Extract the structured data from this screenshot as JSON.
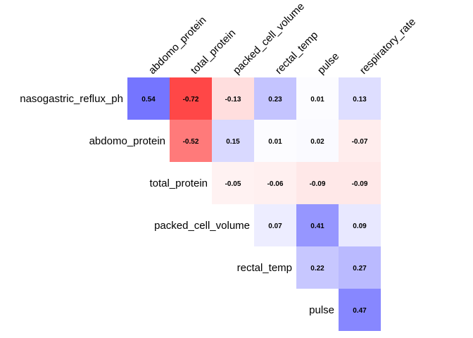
{
  "chart_data": {
    "type": "heatmap",
    "title": "",
    "columns": [
      "abdomo_protein",
      "total_protein",
      "packed_cell_volume",
      "rectal_temp",
      "pulse",
      "respiratory_rate"
    ],
    "rows": [
      "nasogastric_reflux_ph",
      "abdomo_protein",
      "total_protein",
      "packed_cell_volume",
      "rectal_temp",
      "pulse"
    ],
    "cells": [
      {
        "row": 0,
        "col": 0,
        "value": 0.54,
        "label": "0.54"
      },
      {
        "row": 0,
        "col": 1,
        "value": -0.72,
        "label": "-0.72"
      },
      {
        "row": 0,
        "col": 2,
        "value": -0.13,
        "label": "-0.13"
      },
      {
        "row": 0,
        "col": 3,
        "value": 0.23,
        "label": "0.23"
      },
      {
        "row": 0,
        "col": 4,
        "value": 0.01,
        "label": "0.01"
      },
      {
        "row": 0,
        "col": 5,
        "value": 0.13,
        "label": "0.13"
      },
      {
        "row": 1,
        "col": 1,
        "value": -0.52,
        "label": "-0.52"
      },
      {
        "row": 1,
        "col": 2,
        "value": 0.15,
        "label": "0.15"
      },
      {
        "row": 1,
        "col": 3,
        "value": 0.01,
        "label": "0.01"
      },
      {
        "row": 1,
        "col": 4,
        "value": 0.02,
        "label": "0.02"
      },
      {
        "row": 1,
        "col": 5,
        "value": -0.07,
        "label": "-0.07"
      },
      {
        "row": 2,
        "col": 2,
        "value": -0.05,
        "label": "-0.05"
      },
      {
        "row": 2,
        "col": 3,
        "value": -0.06,
        "label": "-0.06"
      },
      {
        "row": 2,
        "col": 4,
        "value": -0.09,
        "label": "-0.09"
      },
      {
        "row": 2,
        "col": 5,
        "value": -0.09,
        "label": "-0.09"
      },
      {
        "row": 3,
        "col": 3,
        "value": 0.07,
        "label": "0.07"
      },
      {
        "row": 3,
        "col": 4,
        "value": 0.41,
        "label": "0.41"
      },
      {
        "row": 3,
        "col": 5,
        "value": 0.09,
        "label": "0.09"
      },
      {
        "row": 4,
        "col": 4,
        "value": 0.22,
        "label": "0.22"
      },
      {
        "row": 4,
        "col": 5,
        "value": 0.27,
        "label": "0.27"
      },
      {
        "row": 5,
        "col": 5,
        "value": 0.47,
        "label": "0.47"
      }
    ],
    "color_scale": {
      "negative": "#ff0000",
      "neutral": "#ffffff",
      "positive": "#0000ff",
      "range": [
        -1,
        1
      ]
    }
  }
}
